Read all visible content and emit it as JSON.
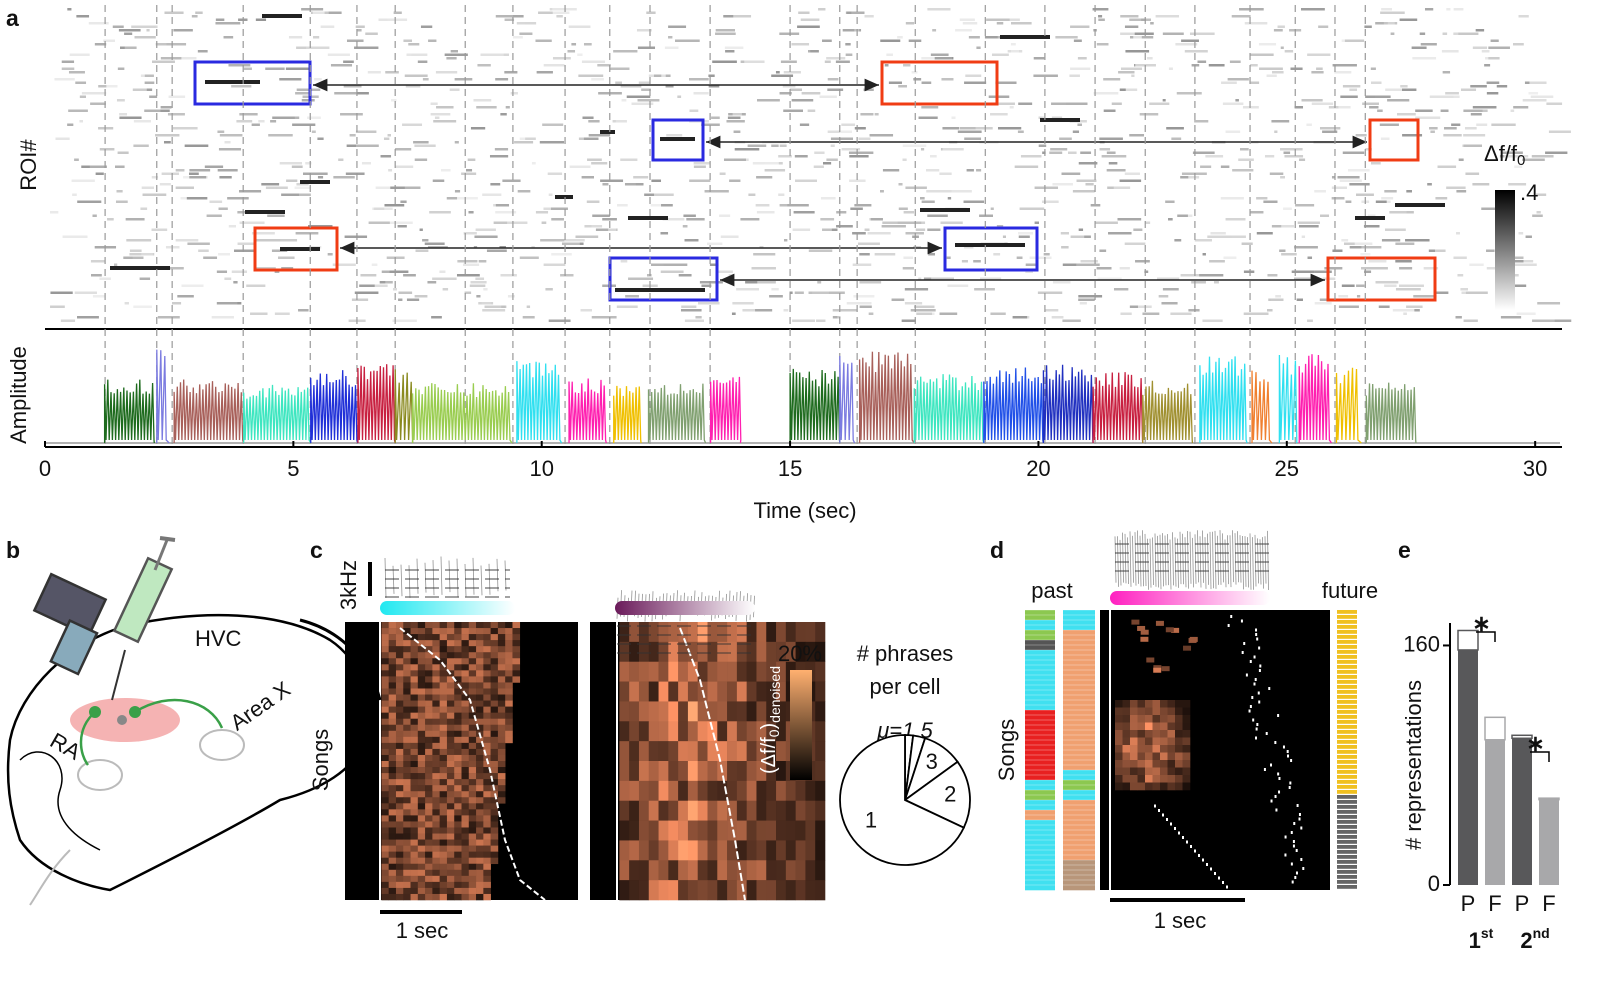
{
  "panel_labels": [
    "a",
    "b",
    "c",
    "d",
    "e"
  ],
  "chart_data": [
    {
      "type": "timeline",
      "x_label": "Time (sec)",
      "raster_label": "ROI#",
      "amplitude_label": "Amplitude",
      "xlim": [
        0,
        30.5
      ],
      "xticks": [
        0,
        5,
        10,
        15,
        20,
        25,
        30
      ],
      "phrase_boundaries": [
        1.21,
        2.25,
        2.56,
        3.99,
        5.34,
        6.28,
        7.05,
        8.46,
        9.42,
        10.47,
        11.37,
        12.18,
        13.39,
        15.0,
        16.0,
        16.35,
        17.52,
        18.93,
        20.13,
        21.14,
        22.15,
        23.15,
        24.26,
        25.17,
        25.97,
        26.58
      ],
      "phrases": {
        "start": [
          1.2,
          2.25,
          2.6,
          4.0,
          5.35,
          6.3,
          7.05,
          7.4,
          9.5,
          10.55,
          11.45,
          12.15,
          13.4,
          15.0,
          16.0,
          16.4,
          17.5,
          18.9,
          20.1,
          21.1,
          22.1,
          23.25,
          24.3,
          24.85,
          25.25,
          26.0,
          26.6
        ],
        "end": [
          2.2,
          2.5,
          4.0,
          5.35,
          6.3,
          7.05,
          7.4,
          9.4,
          10.4,
          11.3,
          12.0,
          13.3,
          14.0,
          16.0,
          16.3,
          17.5,
          18.9,
          20.1,
          21.1,
          22.1,
          23.1,
          24.2,
          24.7,
          25.2,
          25.9,
          26.5,
          27.6
        ],
        "color": [
          "#1e6b1e",
          "#7b7be0",
          "#a8605a",
          "#3ee6c0",
          "#2030d8",
          "#c82040",
          "#8a8a20",
          "#9acd50",
          "#30e0f0",
          "#ff20b0",
          "#f0c000",
          "#80a070",
          "#ff20b0",
          "#1e6b1e",
          "#7b7be0",
          "#a8605a",
          "#3ee6c0",
          "#2050e8",
          "#2030c0",
          "#c82040",
          "#a09030",
          "#30e0f0",
          "#f08030",
          "#30e0f0",
          "#ff20b0",
          "#f0c000",
          "#80a070"
        ]
      },
      "colorbar": {
        "label": "Δf/f",
        "label_sub": "0",
        "clim": [
          0,
          0.4
        ],
        "ticks": [
          {
            "value": 0.4,
            "label": ".4"
          }
        ]
      }
    },
    {
      "type": "pie",
      "title_lines": [
        "# phrases",
        "per cell"
      ],
      "annotation": "μ=1.5",
      "categories": [
        "1",
        "2",
        "3",
        null,
        null
      ],
      "values": [
        68,
        17,
        10,
        3,
        2
      ]
    },
    {
      "type": "bar",
      "y_label": "# representations",
      "categories": [
        "P",
        "F",
        "P",
        "F"
      ],
      "groups": [
        {
          "label": "1",
          "sup": "st"
        },
        {
          "label": "2",
          "sup": "nd"
        }
      ],
      "series": [
        {
          "color": [
            "#58585a",
            "#a8a8aa",
            "#58585a",
            "#a8a8aa"
          ],
          "values": [
            157,
            97,
            98,
            57
          ]
        },
        {
          "color": "#ffffff",
          "values": [
            13,
            15,
            2,
            1
          ]
        }
      ],
      "ylim": [
        0,
        175
      ],
      "yticks": [
        0,
        160
      ],
      "annotations": [
        "∗",
        "∗"
      ]
    }
  ],
  "diagram": {
    "labels": [
      "HVC",
      "RA",
      "Area X"
    ]
  },
  "panel_c": {
    "scale_label": "3kHz",
    "y_label": "Songs",
    "time_scale": "1 sec",
    "colorbar": {
      "clim": [
        0,
        20
      ],
      "ticks": [
        {
          "value": 20,
          "label": "20%"
        }
      ],
      "label_parts": [
        "(Δf/f",
        "0",
        ")",
        "denoised"
      ]
    }
  },
  "panel_d": {
    "past": "past",
    "future": "future",
    "y_label": "Songs",
    "time_scale": "1 sec"
  }
}
